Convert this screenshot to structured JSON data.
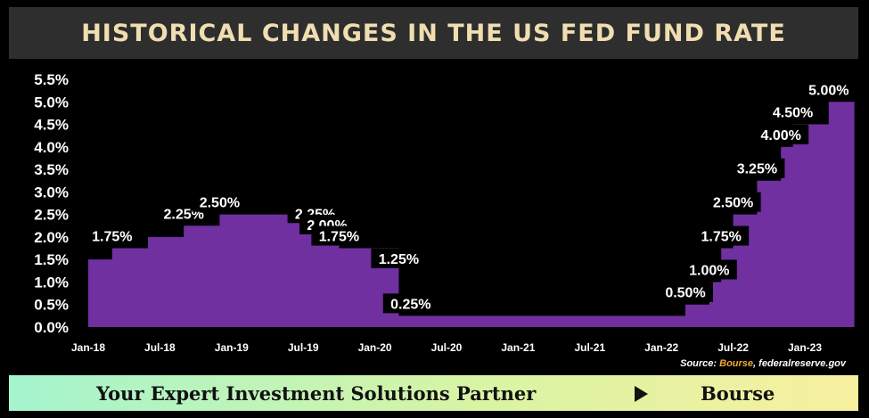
{
  "header": {
    "title": "HISTORICAL CHANGES IN THE US FED FUND RATE"
  },
  "source": {
    "prefix": "Source: ",
    "brand": "Bourse",
    "suffix": ", federalreserve.gov"
  },
  "footer": {
    "tagline": "Your Expert Investment Solutions Partner",
    "brand": "Bourse"
  },
  "colors": {
    "area": "#7030a0",
    "title_text": "#f0deb1",
    "source_brand": "#f2a93b"
  },
  "chart_data": {
    "type": "area",
    "title": "HISTORICAL CHANGES IN THE US FED FUND RATE",
    "x_ticks": [
      "Jan-18",
      "Jul-18",
      "Jan-19",
      "Jul-19",
      "Jan-20",
      "Jul-20",
      "Jan-21",
      "Jul-21",
      "Jan-22",
      "Jul-22",
      "Jan-23"
    ],
    "y_ticks": [
      "0.0%",
      "0.5%",
      "1.0%",
      "1.5%",
      "2.0%",
      "2.5%",
      "3.0%",
      "3.5%",
      "4.0%",
      "4.5%",
      "5.0%",
      "5.5%"
    ],
    "ylim": [
      0,
      5.5
    ],
    "xlim": [
      "2018-01",
      "2023-05"
    ],
    "grid": false,
    "series": [
      {
        "points": [
          {
            "date": "2018-01",
            "value": 1.5
          },
          {
            "date": "2018-03",
            "value": 1.75
          },
          {
            "date": "2018-06",
            "value": 2.0
          },
          {
            "date": "2018-09",
            "value": 2.25
          },
          {
            "date": "2018-12",
            "value": 2.5
          },
          {
            "date": "2019-08",
            "value": 2.25
          },
          {
            "date": "2019-09",
            "value": 2.0
          },
          {
            "date": "2019-10",
            "value": 1.75
          },
          {
            "date": "2020-03",
            "value": 1.25
          },
          {
            "date": "2020-03",
            "value": 0.25
          },
          {
            "date": "2022-03",
            "value": 0.5
          },
          {
            "date": "2022-05",
            "value": 1.0
          },
          {
            "date": "2022-06",
            "value": 1.75
          },
          {
            "date": "2022-07",
            "value": 2.5
          },
          {
            "date": "2022-09",
            "value": 3.25
          },
          {
            "date": "2022-11",
            "value": 4.0
          },
          {
            "date": "2022-12",
            "value": 4.5
          },
          {
            "date": "2023-03",
            "value": 5.0
          }
        ]
      }
    ],
    "data_labels": [
      {
        "date": "2018-03",
        "value": 1.75,
        "text": "1.75%"
      },
      {
        "date": "2018-09",
        "value": 2.25,
        "text": "2.25%"
      },
      {
        "date": "2018-12",
        "value": 2.5,
        "text": "2.50%"
      },
      {
        "date": "2019-08",
        "value": 2.25,
        "text": "2.25%"
      },
      {
        "date": "2019-09",
        "value": 2.0,
        "text": "2.00%"
      },
      {
        "date": "2019-10",
        "value": 1.75,
        "text": "1.75%"
      },
      {
        "date": "2020-03",
        "value": 1.25,
        "text": "1.25%"
      },
      {
        "date": "2020-04",
        "value": 0.25,
        "text": "0.25%"
      },
      {
        "date": "2022-03",
        "value": 0.5,
        "text": "0.50%"
      },
      {
        "date": "2022-05",
        "value": 1.0,
        "text": "1.00%"
      },
      {
        "date": "2022-06",
        "value": 1.75,
        "text": "1.75%"
      },
      {
        "date": "2022-07",
        "value": 2.5,
        "text": "2.50%"
      },
      {
        "date": "2022-09",
        "value": 3.25,
        "text": "3.25%"
      },
      {
        "date": "2022-11",
        "value": 4.0,
        "text": "4.00%"
      },
      {
        "date": "2022-12",
        "value": 4.5,
        "text": "4.50%"
      },
      {
        "date": "2023-03",
        "value": 5.0,
        "text": "5.00%"
      }
    ]
  }
}
